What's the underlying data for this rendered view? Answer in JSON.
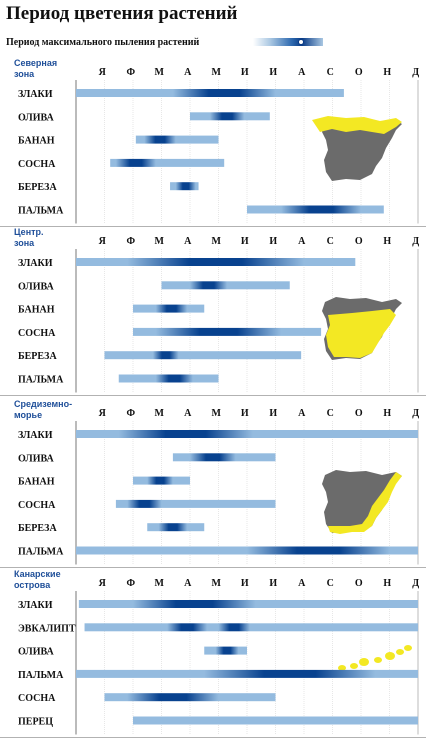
{
  "title": "Период цветения растений",
  "legend": {
    "label": "Период максимального пыления растений"
  },
  "colors": {
    "light": "#94bbdf",
    "dark": "#08428f",
    "map_gray": "#6b6b6b",
    "map_yellow": "#f3e823",
    "zone_label": "#1f4f99"
  },
  "chart_data": {
    "type": "gantt",
    "months": [
      "Я",
      "Ф",
      "М",
      "А",
      "М",
      "И",
      "И",
      "А",
      "С",
      "О",
      "Н",
      "Д"
    ],
    "zones": [
      {
        "name_lines": [
          "Северная",
          "зона"
        ],
        "map": "north",
        "rows": [
          {
            "plant": "ЗЛАКИ",
            "start": 0,
            "end": 9.4,
            "peaks": [
              [
                3.4,
                7.0
              ]
            ]
          },
          {
            "plant": "ОЛИВА",
            "start": 4.0,
            "end": 6.8,
            "peaks": [
              [
                4.7,
                5.9
              ]
            ]
          },
          {
            "plant": "БАНАН",
            "start": 2.1,
            "end": 5.0,
            "peaks": [
              [
                2.4,
                3.5
              ]
            ]
          },
          {
            "plant": "СОСНА",
            "start": 1.2,
            "end": 5.2,
            "peaks": [
              [
                1.4,
                2.8
              ]
            ]
          },
          {
            "plant": "БЕРЕЗА",
            "start": 3.3,
            "end": 4.3,
            "peaks": [
              [
                3.5,
                4.2
              ]
            ]
          },
          {
            "plant": "ПАЛЬМА",
            "start": 6.0,
            "end": 10.8,
            "peaks": [
              [
                7.2,
                10.0
              ]
            ]
          }
        ]
      },
      {
        "name_lines": [
          "Центр.",
          "зона"
        ],
        "map": "center",
        "rows": [
          {
            "plant": "ЗЛАКИ",
            "start": 0,
            "end": 9.8,
            "peaks": [
              [
                1.8,
                8.0
              ]
            ]
          },
          {
            "plant": "ОЛИВА",
            "start": 3.0,
            "end": 7.5,
            "peaks": [
              [
                4.0,
                5.3
              ]
            ]
          },
          {
            "plant": "БАНАН",
            "start": 2.0,
            "end": 4.5,
            "peaks": [
              [
                2.8,
                3.9
              ]
            ]
          },
          {
            "plant": "СОСНА",
            "start": 2.0,
            "end": 8.6,
            "peaks": [
              [
                2.8,
                7.2
              ]
            ]
          },
          {
            "plant": "БЕРЕЗА",
            "start": 1.0,
            "end": 7.9,
            "peaks": [
              [
                2.7,
                3.6
              ]
            ]
          },
          {
            "plant": "ПАЛЬМА",
            "start": 1.5,
            "end": 5.0,
            "peaks": [
              [
                2.8,
                4.1
              ]
            ]
          }
        ]
      },
      {
        "name_lines": [
          "Средиземно-",
          "морье"
        ],
        "map": "med",
        "rows": [
          {
            "plant": "ЗЛАКИ",
            "start": 0,
            "end": 12,
            "peaks": [
              [
                1.5,
                6.2
              ]
            ]
          },
          {
            "plant": "ОЛИВА",
            "start": 3.4,
            "end": 7.0,
            "peaks": [
              [
                4.0,
                5.6
              ]
            ]
          },
          {
            "plant": "БАНАН",
            "start": 2.0,
            "end": 4.0,
            "peaks": [
              [
                2.5,
                3.4
              ]
            ]
          },
          {
            "plant": "СОСНА",
            "start": 1.4,
            "end": 7.0,
            "peaks": [
              [
                1.8,
                3.0
              ]
            ]
          },
          {
            "plant": "БЕРЕЗА",
            "start": 2.5,
            "end": 4.5,
            "peaks": [
              [
                2.9,
                3.9
              ]
            ]
          },
          {
            "plant": "ПАЛЬМА",
            "start": 0,
            "end": 12,
            "peaks": [
              [
                6.0,
                11.0
              ]
            ]
          }
        ]
      },
      {
        "name_lines": [
          "Канарские",
          "острова"
        ],
        "map": "canary",
        "rows": [
          {
            "plant": "ЗЛАКИ",
            "start": 0.1,
            "end": 12,
            "peaks": [
              [
                2.0,
                6.3
              ]
            ]
          },
          {
            "plant": "ЭВКАЛИПТ",
            "start": 0.3,
            "end": 12,
            "peaks": [
              [
                3.2,
                4.6
              ],
              [
                5.0,
                6.1
              ]
            ]
          },
          {
            "plant": "ОЛИВА",
            "start": 4.5,
            "end": 6.0,
            "peaks": [
              [
                4.9,
                5.7
              ]
            ]
          },
          {
            "plant": "ПАЛЬМА",
            "start": 0,
            "end": 12,
            "peaks": [
              [
                4.5,
                10.5
              ]
            ]
          },
          {
            "plant": "СОСНА",
            "start": 1.0,
            "end": 7.0,
            "peaks": [
              [
                1.8,
                5.0
              ]
            ]
          },
          {
            "plant": "ПЕРЕЦ",
            "start": 2.0,
            "end": 12,
            "peaks": []
          }
        ]
      }
    ]
  }
}
